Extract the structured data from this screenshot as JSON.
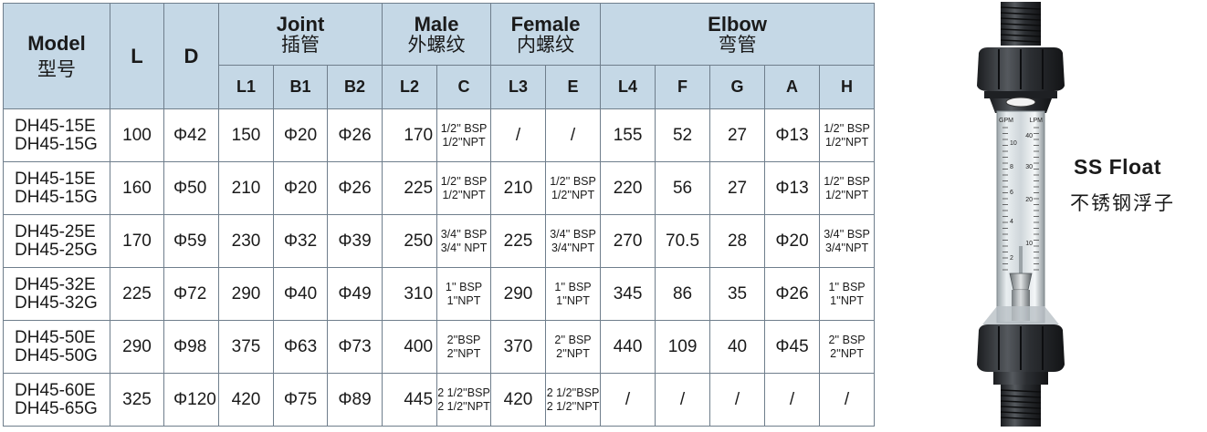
{
  "table": {
    "header": {
      "model_en": "Model",
      "model_cn": "型号",
      "L": "L",
      "D": "D",
      "joint_en": "Joint",
      "joint_cn": "插管",
      "male_en": "Male",
      "male_cn": "外螺纹",
      "female_en": "Female",
      "female_cn": "内螺纹",
      "elbow_en": "Elbow",
      "elbow_cn": "弯管",
      "sub": [
        "L1",
        "B1",
        "B2",
        "L2",
        "C",
        "L3",
        "E",
        "L4",
        "F",
        "G",
        "A",
        "H"
      ]
    },
    "rows": [
      {
        "model": [
          "DH45-15E",
          "DH45-15G"
        ],
        "L": "100",
        "D": "Φ42",
        "L1": "150",
        "B1": "Φ20",
        "B2": "Φ26",
        "L2": "170",
        "C": [
          "1/2'' BSP",
          "1/2''NPT"
        ],
        "L3": "/",
        "E": [
          "/"
        ],
        "L4": "155",
        "F": "52",
        "G": "27",
        "A": "Φ13",
        "H": [
          "1/2'' BSP",
          "1/2''NPT"
        ]
      },
      {
        "model": [
          "DH45-15E",
          "DH45-15G"
        ],
        "L": "160",
        "D": "Φ50",
        "L1": "210",
        "B1": "Φ20",
        "B2": "Φ26",
        "L2": "225",
        "C": [
          "1/2'' BSP",
          "1/2''NPT"
        ],
        "L3": "210",
        "E": [
          "1/2'' BSP",
          "1/2''NPT"
        ],
        "L4": "220",
        "F": "56",
        "G": "27",
        "A": "Φ13",
        "H": [
          "1/2'' BSP",
          "1/2''NPT"
        ]
      },
      {
        "model": [
          "DH45-25E",
          "DH45-25G"
        ],
        "L": "170",
        "D": "Φ59",
        "L1": "230",
        "B1": "Φ32",
        "B2": "Φ39",
        "L2": "250",
        "C": [
          "3/4'' BSP",
          "3/4'' NPT"
        ],
        "L3": "225",
        "E": [
          "3/4'' BSP",
          "3/4''NPT"
        ],
        "L4": "270",
        "F": "70.5",
        "G": "28",
        "A": "Φ20",
        "H": [
          "3/4'' BSP",
          "3/4''NPT"
        ]
      },
      {
        "model": [
          "DH45-32E",
          "DH45-32G"
        ],
        "L": "225",
        "D": "Φ72",
        "L1": "290",
        "B1": "Φ40",
        "B2": "Φ49",
        "L2": "310",
        "C": [
          "1'' BSP",
          "1''NPT"
        ],
        "L3": "290",
        "E": [
          "1'' BSP",
          "1''NPT"
        ],
        "L4": "345",
        "F": "86",
        "G": "35",
        "A": "Φ26",
        "H": [
          "1'' BSP",
          "1''NPT"
        ]
      },
      {
        "model": [
          "DH45-50E",
          "DH45-50G"
        ],
        "L": "290",
        "D": "Φ98",
        "L1": "375",
        "B1": "Φ63",
        "B2": "Φ73",
        "L2": "400",
        "C": [
          "2''BSP",
          "2''NPT"
        ],
        "L3": "370",
        "E": [
          "2'' BSP",
          "2''NPT"
        ],
        "L4": "440",
        "F": "109",
        "G": "40",
        "A": "Φ45",
        "H": [
          "2'' BSP",
          "2''NPT"
        ]
      },
      {
        "model": [
          "DH45-60E",
          "DH45-65G"
        ],
        "L": "325",
        "D": "Φ120",
        "L1": "420",
        "B1": "Φ75",
        "B2": "Φ89",
        "L2": "445",
        "C": [
          "2 1/2''BSP",
          "2 1/2''NPT"
        ],
        "L3": "420",
        "E": [
          "2 1/2''BSP",
          "2 1/2''NPT"
        ],
        "L4": "/",
        "F": "/",
        "G": "/",
        "A": "/",
        "H": [
          "/"
        ]
      }
    ]
  },
  "product": {
    "caption_en": "SS Float",
    "caption_cn": "不锈钢浮子",
    "scale": {
      "gpm_label": "GPM",
      "lpm_label": "LPM",
      "gpm_ticks": [
        "10",
        "8",
        "6",
        "4",
        "2"
      ],
      "lpm_ticks": [
        "40",
        "30",
        "20",
        "10"
      ]
    },
    "colors": {
      "body": "#2a2d31",
      "tube": "#c9d0d4",
      "header_bg": "#c5d8e6",
      "grid": "#6f7e8c"
    }
  }
}
